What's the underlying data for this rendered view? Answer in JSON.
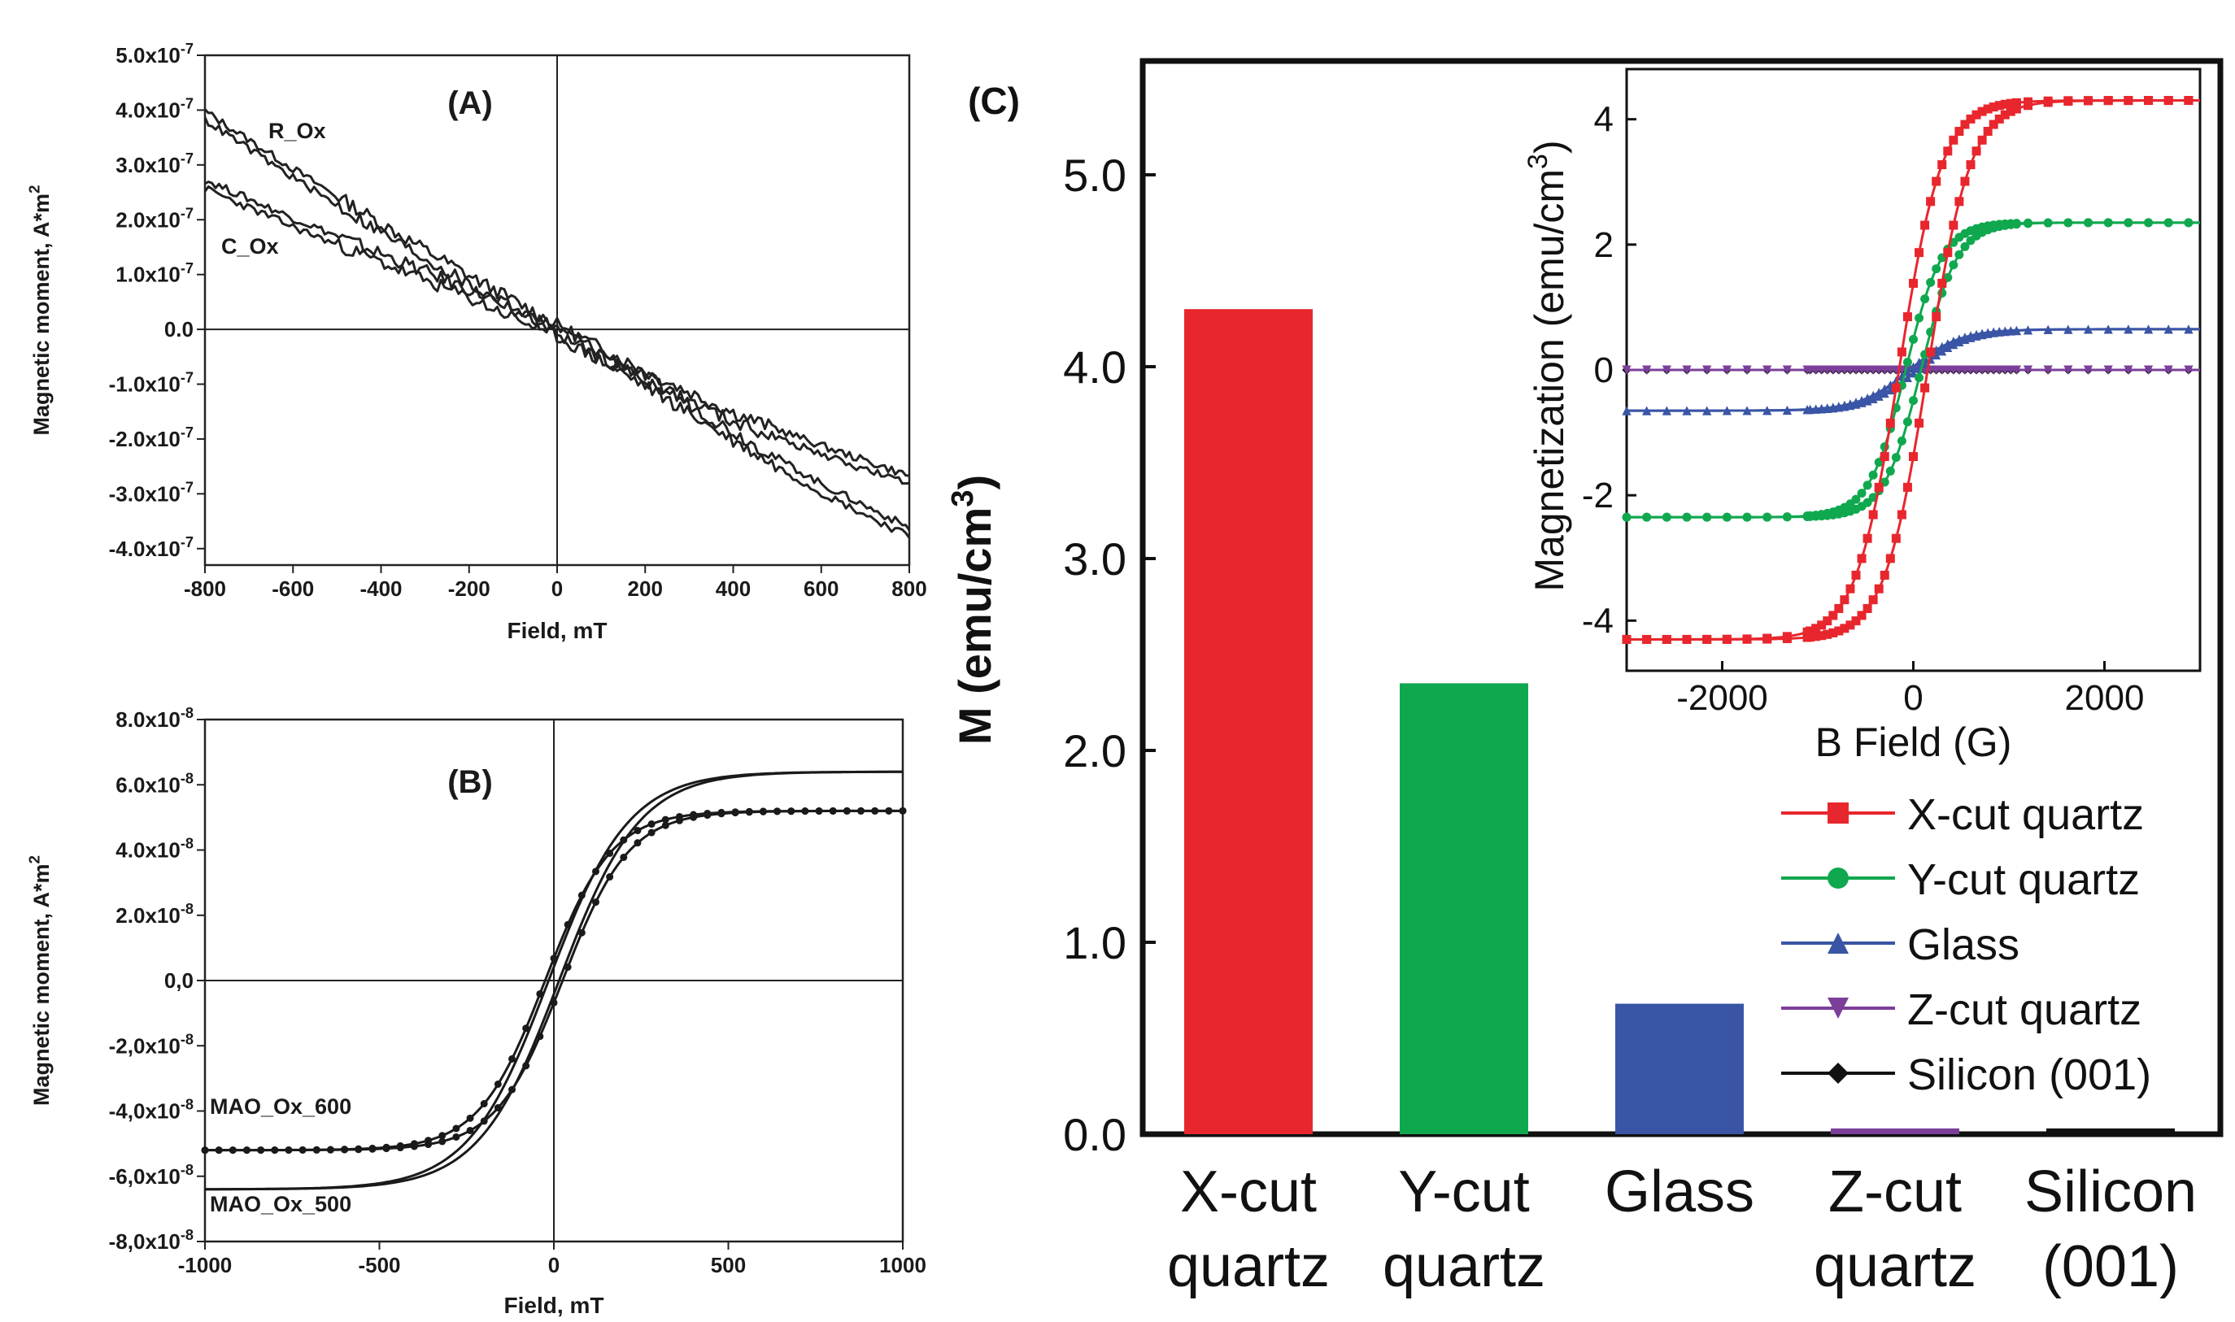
{
  "figure": {
    "panels": [
      "(A)",
      "(B)",
      "(C)"
    ]
  },
  "chart_data": [
    {
      "panel_label": "(A)",
      "type": "line",
      "xlabel": "Field, mT",
      "ylabel": "Magnetic moment, A*m^2",
      "xlim": [
        -800,
        800
      ],
      "ylim": [
        -4.3e-07,
        5e-07
      ],
      "x_ticks": [
        "-800",
        "-600",
        "-400",
        "-200",
        "0",
        "200",
        "400",
        "600",
        "800"
      ],
      "y_ticks": [
        "5.0x10^-7",
        "4.0x10^-7",
        "3.0x10^-7",
        "2.0x10^-7",
        "1.0x10^-7",
        "0.0",
        "-1.0x10^-7",
        "-2.0x10^-7",
        "-3.0x10^-7",
        "-4.0x10^-7"
      ],
      "y_tick_values": [
        5e-07,
        4e-07,
        3e-07,
        2e-07,
        1e-07,
        0,
        -1e-07,
        -2e-07,
        -3e-07,
        -4e-07
      ],
      "series": [
        {
          "name": "R_Ox",
          "x": [
            -800,
            -600,
            -400,
            -200,
            0,
            200,
            400,
            600,
            800
          ],
          "y": [
            3.9e-07,
            2.85e-07,
            1.85e-07,
            9e-08,
            0.0,
            -8.5e-08,
            -1.6e-07,
            -2.2e-07,
            -2.75e-07
          ]
        },
        {
          "name": "C_Ox",
          "x": [
            -800,
            -600,
            -400,
            -200,
            0,
            200,
            400,
            600,
            800
          ],
          "y": [
            2.65e-07,
            1.95e-07,
            1.3e-07,
            6.5e-08,
            -5e-09,
            -9.5e-08,
            -1.95e-07,
            -2.9e-07,
            -3.7e-07
          ]
        }
      ],
      "annotations": [
        "R_Ox",
        "C_Ox"
      ]
    },
    {
      "panel_label": "(B)",
      "type": "line",
      "xlabel": "Field, mT",
      "ylabel": "Magnetic moment, A*m^2",
      "xlim": [
        -1000,
        1000
      ],
      "ylim": [
        -8e-08,
        8e-08
      ],
      "x_ticks": [
        "-1000",
        "-500",
        "0",
        "500",
        "1000"
      ],
      "y_ticks": [
        "8.0x10^-8",
        "6.0x10^-8",
        "4.0x10^-8",
        "2.0x10^-8",
        "0,0",
        "-2,0x10^-8",
        "-4,0x10^-8",
        "-6,0x10^-8",
        "-8,0x10^-8"
      ],
      "y_tick_values": [
        8e-08,
        6e-08,
        4e-08,
        2e-08,
        0,
        -2e-08,
        -4e-08,
        -6e-08,
        -8e-08
      ],
      "series": [
        {
          "name": "MAO_Ox_500",
          "ms": 6.4e-08,
          "hwidth": 230,
          "hc": 15,
          "marker": "none"
        },
        {
          "name": "MAO_Ox_600",
          "ms": 5.2e-08,
          "hwidth": 190,
          "hc": 25,
          "marker": "dot"
        }
      ],
      "annotations": [
        "MAO_Ox_600",
        "MAO_Ox_500"
      ]
    },
    {
      "panel_label": "(C)",
      "type": "bar",
      "ylabel": "M (emu/cm^3)",
      "ylim": [
        0,
        5.5
      ],
      "y_ticks": [
        "0.0",
        "1.0",
        "2.0",
        "3.0",
        "4.0",
        "5.0"
      ],
      "y_tick_values": [
        0,
        1,
        2,
        3,
        4,
        5
      ],
      "categories": [
        [
          "X-cut",
          "quartz"
        ],
        [
          "Y-cut",
          "quartz"
        ],
        [
          "Glass"
        ],
        [
          "Z-cut",
          "quartz"
        ],
        [
          "Silicon",
          "(001)"
        ]
      ],
      "values": [
        4.3,
        2.35,
        0.68,
        0.03,
        0.03
      ],
      "colors": [
        "#e8262d",
        "#10a84f",
        "#3a55a5",
        "#7b3f9a",
        "#111111"
      ]
    },
    {
      "panel_label": "(C) inset",
      "type": "line",
      "xlabel": "B Field (G)",
      "ylabel": "Magnetization (emu/cm^3)",
      "xlim": [
        -3000,
        3000
      ],
      "ylim": [
        -4.8,
        4.8
      ],
      "x_ticks": [
        "-2000",
        "0",
        "2000"
      ],
      "x_tick_values": [
        -2000,
        0,
        2000
      ],
      "y_ticks": [
        "4",
        "2",
        "0",
        "-2",
        "-4"
      ],
      "y_tick_values": [
        4,
        2,
        0,
        -2,
        -4
      ],
      "series": [
        {
          "name": "X-cut quartz",
          "color": "#e8262d",
          "marker": "square",
          "ms": 4.3,
          "hc": 150,
          "hwidth": 450
        },
        {
          "name": "Y-cut quartz",
          "color": "#10a84f",
          "marker": "circle",
          "ms": 2.35,
          "hc": 80,
          "hwidth": 380
        },
        {
          "name": "Glass",
          "color": "#3a55a5",
          "marker": "triangle-up",
          "ms": 0.65,
          "hc": 40,
          "hwidth": 520
        },
        {
          "name": "Z-cut quartz",
          "color": "#7b3f9a",
          "marker": "triangle-down",
          "ms": 0.0,
          "hc": 0,
          "hwidth": 500
        },
        {
          "name": "Silicon (001)",
          "color": "#111111",
          "marker": "diamond",
          "ms": 0.0,
          "hc": 0,
          "hwidth": 500
        }
      ],
      "legend": [
        "X-cut quartz",
        "Y-cut quartz",
        "Glass",
        "Z-cut quartz",
        "Silicon (001)"
      ],
      "legend_position": "bottom-right"
    }
  ]
}
